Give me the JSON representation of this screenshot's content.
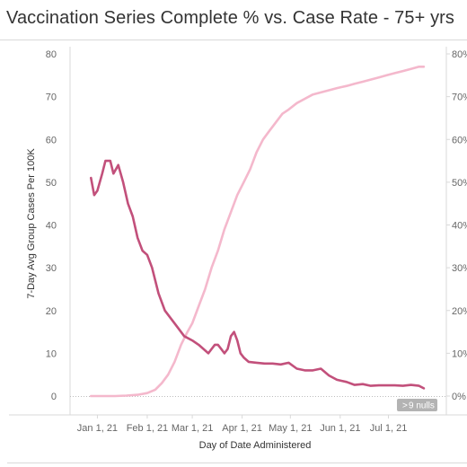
{
  "chart_data": {
    "type": "line",
    "title": "Vaccination Series Complete % vs. Case Rate  - 75+ yrs",
    "xlabel": "Day of Date Administered",
    "ylabel": "7-Day Avg Group Cases Per 100K",
    "y2label": "",
    "x_ticks": [
      "Jan 1, 21",
      "Feb 1, 21",
      "Mar 1, 21",
      "Apr 1, 21",
      "May 1, 21",
      "Jun 1, 21",
      "Jul 1, 21"
    ],
    "ylim": [
      0,
      80
    ],
    "y_ticks": [
      "0",
      "10",
      "20",
      "30",
      "40",
      "50",
      "60",
      "70",
      "80"
    ],
    "y2lim": [
      0,
      80
    ],
    "y2_ticks": [
      "0%",
      "10%",
      "20%",
      "30%",
      "40%",
      "50%",
      "60%",
      "70%",
      "80%"
    ],
    "nulls_label": "9 nulls",
    "grid": false,
    "series": [
      {
        "axis": "left",
        "color": "#c2507b",
        "x": [
          "2020-12-28",
          "2020-12-30",
          "2021-01-01",
          "2021-01-04",
          "2021-01-06",
          "2021-01-09",
          "2021-01-11",
          "2021-01-14",
          "2021-01-17",
          "2021-01-20",
          "2021-01-23",
          "2021-01-26",
          "2021-01-29",
          "2021-02-01",
          "2021-02-04",
          "2021-02-08",
          "2021-02-12",
          "2021-02-16",
          "2021-02-20",
          "2021-02-24",
          "2021-03-01",
          "2021-03-05",
          "2021-03-08",
          "2021-03-11",
          "2021-03-13",
          "2021-03-15",
          "2021-03-17",
          "2021-03-19",
          "2021-03-21",
          "2021-03-23",
          "2021-03-25",
          "2021-03-27",
          "2021-03-29",
          "2021-03-31",
          "2021-04-02",
          "2021-04-05",
          "2021-04-10",
          "2021-04-15",
          "2021-04-20",
          "2021-04-25",
          "2021-04-30",
          "2021-05-05",
          "2021-05-10",
          "2021-05-15",
          "2021-05-20",
          "2021-05-25",
          "2021-05-30",
          "2021-06-05",
          "2021-06-10",
          "2021-06-15",
          "2021-06-20",
          "2021-06-25",
          "2021-06-30",
          "2021-07-05",
          "2021-07-10",
          "2021-07-15",
          "2021-07-20",
          "2021-07-23"
        ],
        "values": [
          51,
          47,
          48,
          52,
          55,
          55,
          52,
          54,
          50,
          45,
          42,
          37,
          34,
          33,
          30,
          24,
          20,
          18,
          16,
          14,
          13,
          12,
          11,
          10,
          11,
          12,
          12,
          11,
          10,
          11,
          14,
          15,
          13,
          10,
          9,
          8,
          7.8,
          7.6,
          7.6,
          7.4,
          7.8,
          6.4,
          6.0,
          6.0,
          6.4,
          4.8,
          3.8,
          3.3,
          2.6,
          2.8,
          2.4,
          2.5,
          2.5,
          2.5,
          2.4,
          2.6,
          2.4,
          1.8
        ]
      },
      {
        "axis": "right",
        "color": "#f4b8cc",
        "x": [
          "2020-12-28",
          "2021-01-05",
          "2021-01-12",
          "2021-01-19",
          "2021-01-26",
          "2021-02-01",
          "2021-02-06",
          "2021-02-10",
          "2021-02-14",
          "2021-02-18",
          "2021-02-22",
          "2021-02-26",
          "2021-03-01",
          "2021-03-05",
          "2021-03-09",
          "2021-03-13",
          "2021-03-17",
          "2021-03-21",
          "2021-03-25",
          "2021-03-29",
          "2021-04-02",
          "2021-04-06",
          "2021-04-10",
          "2021-04-14",
          "2021-04-18",
          "2021-04-22",
          "2021-04-26",
          "2021-04-30",
          "2021-05-05",
          "2021-05-10",
          "2021-05-15",
          "2021-05-20",
          "2021-05-25",
          "2021-05-30",
          "2021-06-05",
          "2021-06-10",
          "2021-06-15",
          "2021-06-20",
          "2021-06-25",
          "2021-06-30",
          "2021-07-05",
          "2021-07-10",
          "2021-07-15",
          "2021-07-20",
          "2021-07-23"
        ],
        "values": [
          0,
          0,
          0,
          0.1,
          0.3,
          0.7,
          1.5,
          3,
          5,
          8,
          12,
          15,
          17,
          21,
          25,
          30,
          34,
          39,
          43,
          47,
          50,
          53,
          57,
          60,
          62,
          64,
          66,
          67,
          68.5,
          69.5,
          70.5,
          71,
          71.5,
          72,
          72.5,
          73,
          73.5,
          74,
          74.5,
          75,
          75.5,
          76,
          76.5,
          77,
          77
        ]
      }
    ]
  }
}
